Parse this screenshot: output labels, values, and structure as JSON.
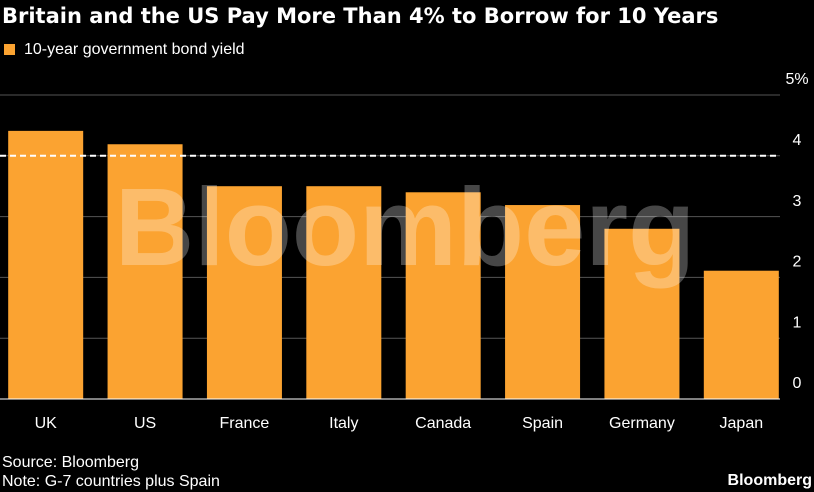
{
  "chart_data": {
    "type": "bar",
    "title": "Britain and the US Pay More Than 4% to Borrow for 10 Years",
    "categories": [
      "UK",
      "US",
      "France",
      "Italy",
      "Canada",
      "Spain",
      "Germany",
      "Japan"
    ],
    "series": [
      {
        "name": "10-year government bond yield",
        "color": "#fba331",
        "values": [
          4.41,
          4.19,
          3.5,
          3.5,
          3.4,
          3.19,
          2.8,
          2.11
        ]
      }
    ],
    "ylim": [
      0,
      5
    ],
    "yticks": [
      0,
      1,
      2,
      3,
      4,
      {
        "value": 5,
        "label": "5%"
      }
    ],
    "grid": true,
    "reference_line": 4,
    "watermark": "Bloomberg",
    "source": "Source: Bloomberg",
    "note": "Note: G-7 countries plus Spain",
    "logo": "Bloomberg"
  }
}
